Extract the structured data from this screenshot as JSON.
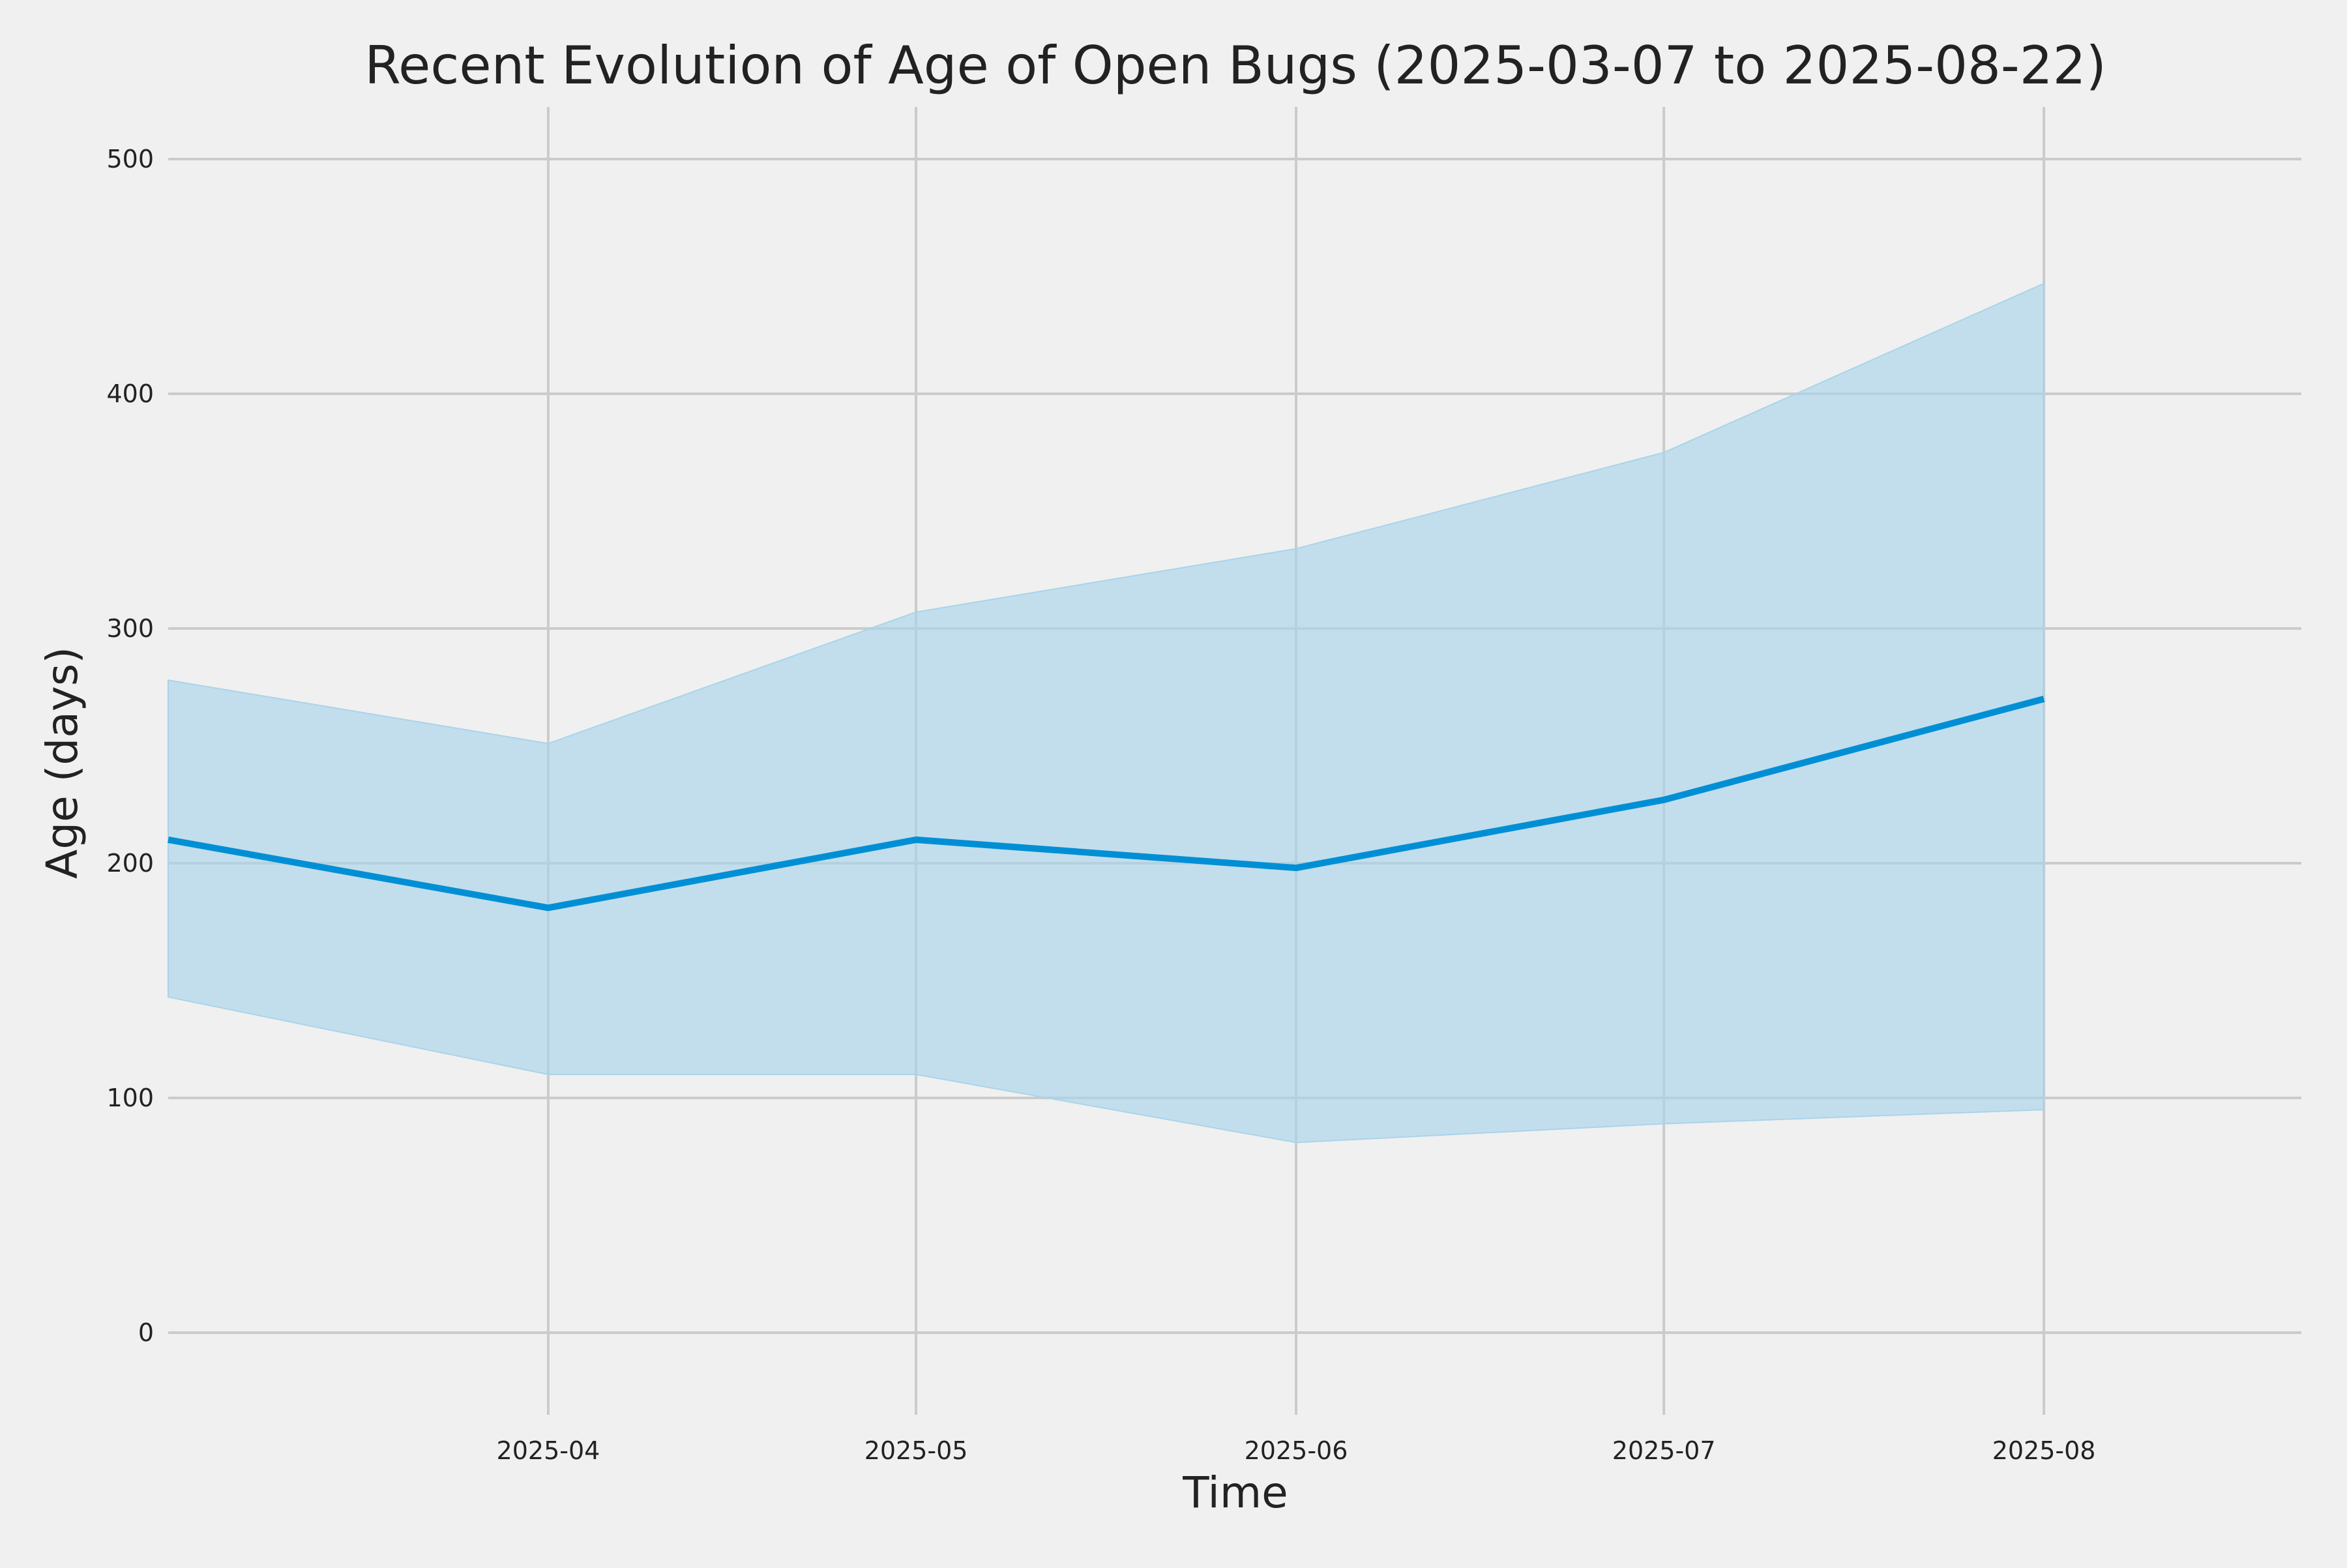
{
  "chart_data": {
    "type": "line",
    "title": "Recent Evolution of Age of Open Bugs (2025-03-07 to 2025-08-22)",
    "xlabel": "Time",
    "ylabel": "Age (days)",
    "x": [
      "2025-03-01",
      "2025-04-01",
      "2025-05-01",
      "2025-06-01",
      "2025-07-01",
      "2025-08-01"
    ],
    "xlim": [
      "2025-03-01",
      "2025-08-22"
    ],
    "ylim": [
      -35,
      540
    ],
    "xticks": [
      "2025-04-01",
      "2025-05-01",
      "2025-06-01",
      "2025-07-01",
      "2025-08-01"
    ],
    "xtick_labels": [
      "2025-04",
      "2025-05",
      "2025-06",
      "2025-07",
      "2025-08"
    ],
    "yticks": [
      0,
      100,
      200,
      300,
      400,
      500
    ],
    "ytick_labels": [
      "0",
      "100",
      "200",
      "300",
      "400",
      "500"
    ],
    "grid": true,
    "series": [
      {
        "values": [
          210,
          181,
          210,
          198,
          227,
          270
        ],
        "band_upper": [
          278,
          251,
          307,
          334,
          375,
          447
        ],
        "band_lower": [
          143,
          110,
          110,
          81,
          89,
          95
        ]
      }
    ],
    "colors": {
      "line": "#008fd5",
      "band": "#a9d4ea",
      "grid": "#cbcbcb",
      "background": "#f0f0f0"
    }
  }
}
